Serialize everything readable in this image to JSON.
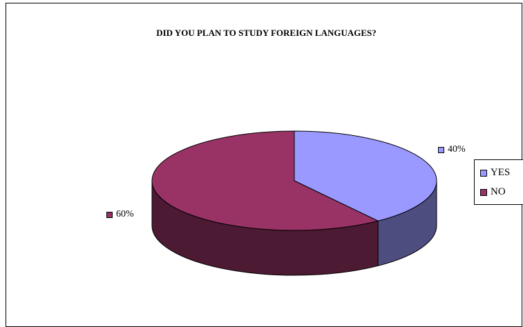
{
  "chart_data": {
    "type": "pie",
    "title": "DID YOU PLAN TO STUDY FOREIGN LANGUAGES?",
    "categories": [
      "YES",
      "NO"
    ],
    "values": [
      40,
      60
    ],
    "data_labels": [
      "40%",
      "60%"
    ],
    "colors": [
      "#9999ff",
      "#993366"
    ],
    "side_colors": [
      "#4d4d80",
      "#4d1a33"
    ],
    "legend_position": "right",
    "three_d": true
  }
}
